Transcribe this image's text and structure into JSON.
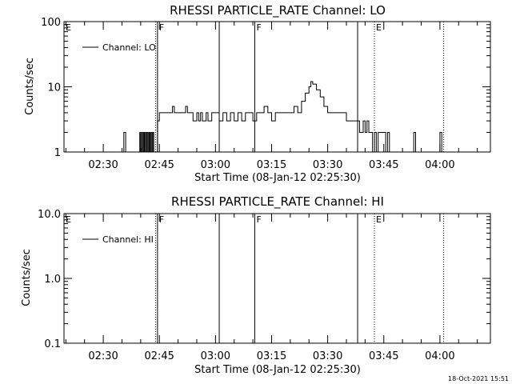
{
  "footer_timestamp": "18-Oct-2021 15:51",
  "chart_data": [
    {
      "type": "line",
      "title": "RHESSI PARTICLE_RATE Channel: LO",
      "xlabel": "Start Time (08-Jan-12 02:25:30)",
      "ylabel": "Counts/sec",
      "yscale": "log",
      "ylim": [
        1,
        100
      ],
      "xlim_minutes_from_start": [
        -6,
        108
      ],
      "x_ticks": [
        "02:30",
        "02:45",
        "03:00",
        "03:15",
        "03:30",
        "03:45",
        "04:00"
      ],
      "y_ticks": [
        "1",
        "10",
        "100"
      ],
      "legend": {
        "position": "top-left",
        "label": "Channel: LO"
      },
      "flag_lines": [
        {
          "time": "02:44",
          "style": "dotted"
        },
        {
          "time": "02:44:30",
          "style": "solid",
          "label": "F"
        },
        {
          "time": "03:01",
          "style": "solid"
        },
        {
          "time": "03:10:30",
          "style": "solid",
          "label": "F"
        },
        {
          "time": "03:38",
          "style": "solid"
        },
        {
          "time": "03:42:30",
          "style": "dotted",
          "label": "E"
        },
        {
          "time": "04:01",
          "style": "dotted"
        }
      ],
      "edge_label": "E",
      "series": [
        {
          "name": "Channel: LO",
          "x": [
            "02:35:00",
            "02:35:30",
            "02:36:00",
            "02:39:30",
            "02:39:45",
            "02:40:00",
            "02:40:15",
            "02:40:30",
            "02:40:45",
            "02:41:00",
            "02:41:15",
            "02:41:30",
            "02:41:45",
            "02:42:00",
            "02:42:15",
            "02:42:30",
            "02:42:45",
            "02:43:00",
            "02:43:15",
            "02:43:30",
            "02:44:00",
            "02:44:30",
            "02:44:45",
            "02:45:00",
            "02:46:00",
            "02:48:30",
            "02:49:00",
            "02:52:00",
            "02:52:30",
            "02:53:30",
            "02:54:00",
            "02:55:00",
            "02:55:30",
            "02:56:00",
            "02:56:30",
            "02:57:30",
            "02:58:00",
            "02:59:00",
            "03:01:00",
            "03:02:00",
            "03:03:00",
            "03:04:00",
            "03:05:00",
            "03:06:00",
            "03:07:00",
            "03:08:00",
            "03:09:00",
            "03:10:00",
            "03:11:00",
            "03:12:00",
            "03:13:00",
            "03:14:00",
            "03:15:00",
            "03:16:00",
            "03:17:00",
            "03:18:00",
            "03:19:00",
            "03:20:00",
            "03:21:00",
            "03:22:00",
            "03:23:00",
            "03:24:00",
            "03:25:00",
            "03:25:30",
            "03:26:00",
            "03:26:30",
            "03:27:00",
            "03:28:00",
            "03:29:00",
            "03:30:00",
            "03:31:00",
            "03:32:00",
            "03:33:00",
            "03:34:00",
            "03:35:00",
            "03:36:00",
            "03:37:00",
            "03:38:00",
            "03:38:30",
            "03:39:00",
            "03:39:30",
            "03:40:00",
            "03:40:30",
            "03:41:00",
            "03:41:30",
            "03:42:00",
            "03:42:30",
            "03:43:00",
            "03:43:30",
            "03:44:00",
            "03:45:00",
            "03:45:30",
            "03:46:00",
            "03:46:30",
            "03:52:30",
            "03:53:00",
            "03:53:30",
            "03:59:30",
            "04:00:00",
            "04:00:30"
          ],
          "y": [
            1,
            2,
            1,
            1,
            2,
            1,
            2,
            1,
            2,
            1,
            2,
            1,
            2,
            1,
            2,
            1,
            2,
            1,
            2,
            1,
            1,
            3,
            3,
            4,
            4,
            5,
            4,
            5,
            4,
            4,
            3,
            4,
            3,
            4,
            3,
            4,
            3,
            4,
            3,
            4,
            3,
            4,
            3,
            4,
            3,
            4,
            4,
            3,
            4,
            4,
            5,
            4,
            3,
            4,
            4,
            4,
            4,
            4,
            5,
            4,
            6,
            8,
            10,
            12,
            11,
            11,
            9,
            7,
            5,
            4,
            4,
            4,
            4,
            4,
            3,
            3,
            3,
            3,
            2,
            2,
            3,
            2,
            3,
            2,
            2,
            1,
            2,
            1,
            2,
            2,
            2,
            1,
            2,
            1,
            1,
            2,
            1,
            1,
            2,
            1
          ]
        }
      ]
    },
    {
      "type": "line",
      "title": "RHESSI PARTICLE_RATE Channel: HI",
      "xlabel": "Start Time (08-Jan-12 02:25:30)",
      "ylabel": "Counts/sec",
      "yscale": "log",
      "ylim": [
        0.1,
        10
      ],
      "xlim_minutes_from_start": [
        -6,
        108
      ],
      "x_ticks": [
        "02:30",
        "02:45",
        "03:00",
        "03:15",
        "03:30",
        "03:45",
        "04:00"
      ],
      "y_ticks": [
        "0.1",
        "1.0",
        "10.0"
      ],
      "legend": {
        "position": "top-left",
        "label": "Channel: HI"
      },
      "flag_lines": [
        {
          "time": "02:44",
          "style": "dotted"
        },
        {
          "time": "02:44:30",
          "style": "solid",
          "label": "F"
        },
        {
          "time": "03:01",
          "style": "solid"
        },
        {
          "time": "03:10:30",
          "style": "solid",
          "label": "F"
        },
        {
          "time": "03:38",
          "style": "solid"
        },
        {
          "time": "03:42:30",
          "style": "dotted",
          "label": "E"
        },
        {
          "time": "04:01",
          "style": "dotted"
        }
      ],
      "edge_label": "E",
      "series": [
        {
          "name": "Channel: HI",
          "x": [],
          "y": []
        }
      ]
    }
  ]
}
